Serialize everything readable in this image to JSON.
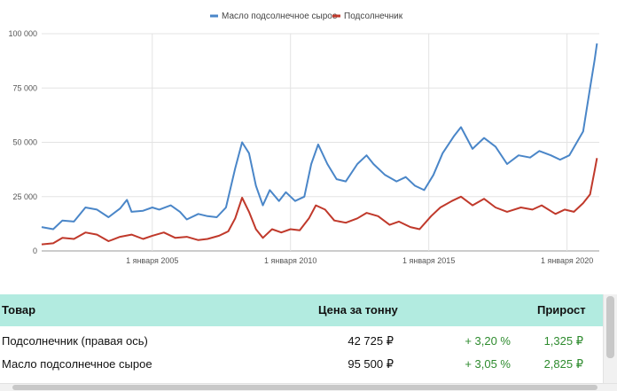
{
  "chart_data": {
    "type": "line",
    "series": [
      {
        "name": "Масло подсолнечное сырое",
        "color": "#4a86c8",
        "points": [
          [
            "2001-01",
            11000
          ],
          [
            "2001-06",
            10000
          ],
          [
            "2001-10",
            14000
          ],
          [
            "2002-03",
            13500
          ],
          [
            "2002-08",
            20000
          ],
          [
            "2003-01",
            19000
          ],
          [
            "2003-06",
            15500
          ],
          [
            "2003-11",
            19500
          ],
          [
            "2004-02",
            23500
          ],
          [
            "2004-04",
            18000
          ],
          [
            "2004-09",
            18500
          ],
          [
            "2005-01",
            20000
          ],
          [
            "2005-04",
            19000
          ],
          [
            "2005-09",
            21000
          ],
          [
            "2006-01",
            18000
          ],
          [
            "2006-04",
            14500
          ],
          [
            "2006-09",
            17000
          ],
          [
            "2007-01",
            16000
          ],
          [
            "2007-05",
            15500
          ],
          [
            "2007-09",
            20000
          ],
          [
            "2008-01",
            38000
          ],
          [
            "2008-04",
            50000
          ],
          [
            "2008-07",
            45000
          ],
          [
            "2008-10",
            30000
          ],
          [
            "2009-01",
            21000
          ],
          [
            "2009-04",
            28000
          ],
          [
            "2009-08",
            23000
          ],
          [
            "2009-11",
            27000
          ],
          [
            "2010-03",
            23000
          ],
          [
            "2010-07",
            25000
          ],
          [
            "2010-10",
            40000
          ],
          [
            "2011-01",
            49000
          ],
          [
            "2011-05",
            40000
          ],
          [
            "2011-09",
            33000
          ],
          [
            "2012-01",
            32000
          ],
          [
            "2012-06",
            40000
          ],
          [
            "2012-10",
            44000
          ],
          [
            "2013-01",
            40000
          ],
          [
            "2013-06",
            35000
          ],
          [
            "2013-11",
            32000
          ],
          [
            "2014-03",
            34000
          ],
          [
            "2014-07",
            30000
          ],
          [
            "2014-11",
            28000
          ],
          [
            "2015-03",
            35000
          ],
          [
            "2015-07",
            45000
          ],
          [
            "2015-12",
            53000
          ],
          [
            "2016-03",
            57000
          ],
          [
            "2016-08",
            47000
          ],
          [
            "2017-01",
            52000
          ],
          [
            "2017-06",
            48000
          ],
          [
            "2017-11",
            40000
          ],
          [
            "2018-04",
            44000
          ],
          [
            "2018-09",
            43000
          ],
          [
            "2019-01",
            46000
          ],
          [
            "2019-06",
            44000
          ],
          [
            "2019-10",
            42000
          ],
          [
            "2020-02",
            44000
          ],
          [
            "2020-08",
            55000
          ],
          [
            "2020-11",
            75000
          ],
          [
            "2021-01",
            88000
          ],
          [
            "2021-02",
            95500
          ]
        ]
      },
      {
        "name": "Подсолнечник",
        "color": "#c0392b",
        "points": [
          [
            "2001-01",
            3000
          ],
          [
            "2001-06",
            3500
          ],
          [
            "2001-10",
            6000
          ],
          [
            "2002-03",
            5500
          ],
          [
            "2002-08",
            8500
          ],
          [
            "2003-01",
            7500
          ],
          [
            "2003-06",
            4500
          ],
          [
            "2003-11",
            6500
          ],
          [
            "2004-04",
            7500
          ],
          [
            "2004-09",
            5500
          ],
          [
            "2005-01",
            7000
          ],
          [
            "2005-06",
            8500
          ],
          [
            "2005-11",
            6000
          ],
          [
            "2006-04",
            6500
          ],
          [
            "2006-09",
            5000
          ],
          [
            "2007-01",
            5500
          ],
          [
            "2007-06",
            7000
          ],
          [
            "2007-10",
            9000
          ],
          [
            "2008-01",
            15000
          ],
          [
            "2008-04",
            24500
          ],
          [
            "2008-07",
            18000
          ],
          [
            "2008-10",
            10000
          ],
          [
            "2009-01",
            6000
          ],
          [
            "2009-05",
            10000
          ],
          [
            "2009-09",
            8500
          ],
          [
            "2010-01",
            10000
          ],
          [
            "2010-05",
            9500
          ],
          [
            "2010-09",
            15000
          ],
          [
            "2010-12",
            21000
          ],
          [
            "2011-04",
            19000
          ],
          [
            "2011-08",
            14000
          ],
          [
            "2012-01",
            13000
          ],
          [
            "2012-06",
            15000
          ],
          [
            "2012-10",
            17500
          ],
          [
            "2013-03",
            16000
          ],
          [
            "2013-08",
            12000
          ],
          [
            "2013-12",
            13500
          ],
          [
            "2014-05",
            11000
          ],
          [
            "2014-09",
            10000
          ],
          [
            "2015-02",
            16000
          ],
          [
            "2015-06",
            20000
          ],
          [
            "2015-11",
            23000
          ],
          [
            "2016-03",
            25000
          ],
          [
            "2016-08",
            21000
          ],
          [
            "2017-01",
            24000
          ],
          [
            "2017-06",
            20000
          ],
          [
            "2017-11",
            18000
          ],
          [
            "2018-05",
            20000
          ],
          [
            "2018-10",
            19000
          ],
          [
            "2019-02",
            21000
          ],
          [
            "2019-08",
            17000
          ],
          [
            "2019-12",
            19000
          ],
          [
            "2020-04",
            18000
          ],
          [
            "2020-08",
            22000
          ],
          [
            "2020-11",
            26000
          ],
          [
            "2021-01",
            37000
          ],
          [
            "2021-02",
            42725
          ]
        ]
      }
    ],
    "x_ticks": [
      {
        "date": "2005-01",
        "label": "1 января 2005"
      },
      {
        "date": "2010-01",
        "label": "1 января 2010"
      },
      {
        "date": "2015-01",
        "label": "1 января 2015"
      },
      {
        "date": "2020-01",
        "label": "1 января 2020"
      }
    ],
    "y_ticks": [
      {
        "value": 0,
        "label": "0"
      },
      {
        "value": 25000,
        "label": "25 000"
      },
      {
        "value": 50000,
        "label": "50 000"
      },
      {
        "value": 75000,
        "label": "75 000"
      },
      {
        "value": 100000,
        "label": "100 000"
      }
    ],
    "xlim": [
      "2001-01",
      "2021-03"
    ],
    "ylim": [
      0,
      100000
    ],
    "grid": true,
    "legend_position": "top"
  },
  "table": {
    "headers": {
      "product": "Товар",
      "price": "Цена за тонну",
      "growth": "Прирост"
    },
    "rows": [
      {
        "product": "Подсолнечник (правая ось)",
        "price": "42 725 ₽",
        "pct": "+ 3,20 %",
        "abs": "1,325 ₽"
      },
      {
        "product": "Масло подсолнечное сырое",
        "price": "95 500 ₽",
        "pct": "+ 3,05 %",
        "abs": "2,825 ₽"
      }
    ]
  }
}
